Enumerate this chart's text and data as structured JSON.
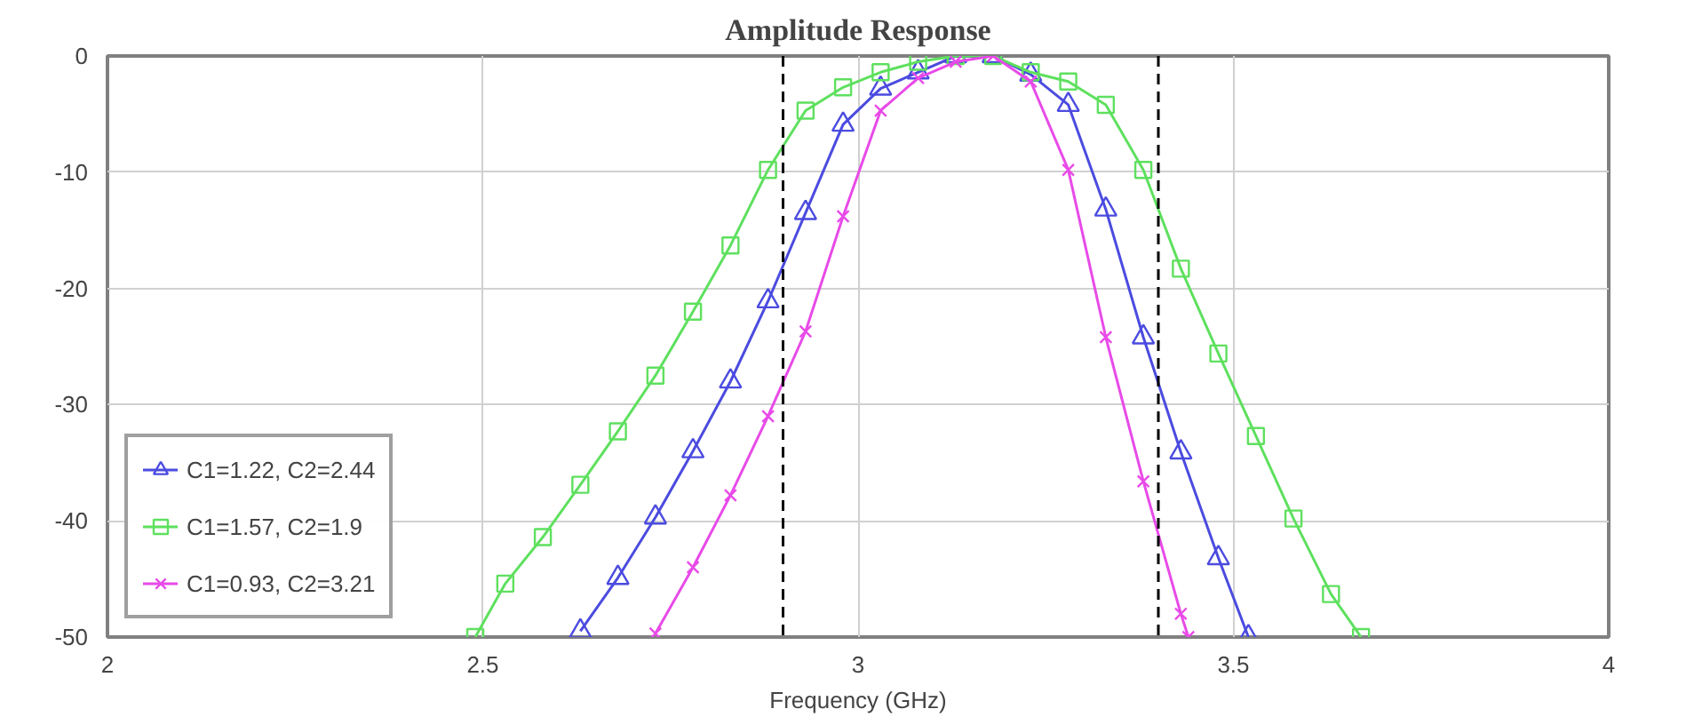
{
  "chart_data": {
    "type": "line",
    "title": "Amplitude Response",
    "xlabel": "Frequency (GHz)",
    "xlim": [
      2,
      4
    ],
    "xticks": [
      2,
      2.5,
      3,
      3.5,
      4
    ],
    "ylim": [
      -50,
      0
    ],
    "yticks": [
      0,
      -10,
      -20,
      -30,
      -40,
      -50
    ],
    "grid": true,
    "legend": "bottom left",
    "ref_lines": [
      {
        "axis": "x",
        "value": 2.9,
        "color": "#000000",
        "line_style": "dashed"
      },
      {
        "axis": "x",
        "value": 3.4,
        "color": "#000000",
        "line_style": "dashed"
      }
    ],
    "series": [
      {
        "name": "C1=1.22, C2=2.44",
        "color": "#4b4be0",
        "marker": "triangle",
        "x": [
          2.63,
          2.68,
          2.73,
          2.78,
          2.83,
          2.88,
          2.93,
          2.98,
          3.03,
          3.08,
          3.13,
          3.18,
          3.23,
          3.28,
          3.33,
          3.38,
          3.43,
          3.48,
          3.52
        ],
        "values": [
          -49.5,
          -44.9,
          -39.7,
          -34,
          -28,
          -21.1,
          -13.5,
          -5.9,
          -2.8,
          -1.4,
          0,
          0,
          -1.6,
          -4.2,
          -13.2,
          -24.2,
          -34.1,
          -43.2,
          -50
        ]
      },
      {
        "name": "C1=1.57, C2=1.9",
        "color": "#5ee05e",
        "marker": "square",
        "x": [
          2.49,
          2.53,
          2.58,
          2.63,
          2.68,
          2.73,
          2.78,
          2.83,
          2.88,
          2.93,
          2.98,
          3.03,
          3.08,
          3.13,
          3.18,
          3.23,
          3.28,
          3.33,
          3.38,
          3.43,
          3.48,
          3.53,
          3.58,
          3.63,
          3.67
        ],
        "values": [
          -50,
          -45.4,
          -41.4,
          -36.9,
          -32.3,
          -27.5,
          -22,
          -16.3,
          -9.8,
          -4.7,
          -2.7,
          -1.4,
          -0.5,
          0,
          0,
          -1.4,
          -2.2,
          -4.2,
          -9.8,
          -18.3,
          -25.6,
          -32.7,
          -39.8,
          -46.3,
          -50
        ]
      },
      {
        "name": "C1=0.93, C2=3.21",
        "color": "#e84ae8",
        "marker": "cross",
        "x": [
          2.73,
          2.78,
          2.83,
          2.88,
          2.93,
          2.98,
          3.03,
          3.08,
          3.13,
          3.18,
          3.23,
          3.28,
          3.33,
          3.38,
          3.43,
          3.44
        ],
        "values": [
          -49.7,
          -44,
          -37.8,
          -31,
          -23.7,
          -13.8,
          -4.7,
          -1.9,
          -0.5,
          0,
          -2.2,
          -9.8,
          -24.2,
          -36.6,
          -48,
          -50
        ]
      }
    ]
  }
}
